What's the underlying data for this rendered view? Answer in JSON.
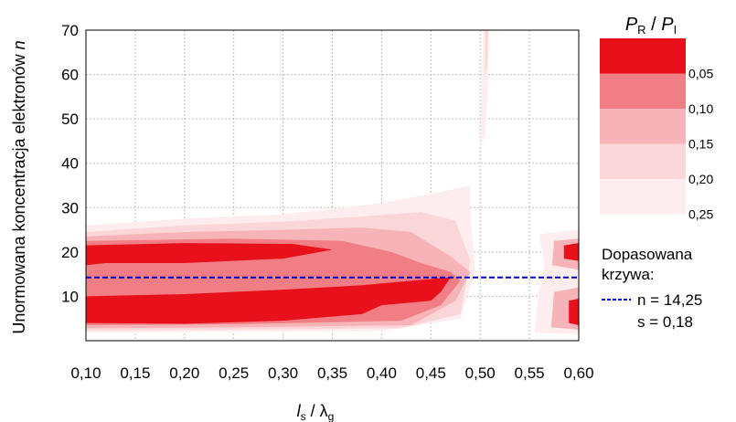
{
  "chart_data": {
    "type": "contour",
    "xlabel": {
      "main": "l",
      "sub1": "s",
      "sep": " / λ",
      "sub2": "g"
    },
    "ylabel": {
      "text": "Unormowana koncentracja elektronów ",
      "var": "n"
    },
    "xlim": [
      0.1,
      0.6
    ],
    "ylim": [
      0,
      70
    ],
    "xticks": [
      "0,10",
      "0,15",
      "0,20",
      "0,25",
      "0,30",
      "0,35",
      "0,40",
      "0,45",
      "0,50",
      "0,55",
      "0,60"
    ],
    "yticks": [
      "10",
      "20",
      "30",
      "40",
      "50",
      "60",
      "70"
    ],
    "grid": true,
    "colorbar": {
      "title_main": "P",
      "title_sub1": "R",
      "title_sep": " / ",
      "title_sub2": "I",
      "levels": [
        "0,05",
        "0,10",
        "0,15",
        "0,20",
        "0,25"
      ],
      "colors": [
        "#e8101a",
        "#f07e84",
        "#f7b4b8",
        "#fbd6d8",
        "#fdedee"
      ]
    },
    "contour_bands": [
      {
        "level": 0.25,
        "color": "#fdedee",
        "points": [
          [
            0.1,
            26
          ],
          [
            0.2,
            27.5
          ],
          [
            0.3,
            28.5
          ],
          [
            0.4,
            31
          ],
          [
            0.46,
            33.5
          ],
          [
            0.49,
            35
          ],
          [
            0.49,
            28
          ],
          [
            0.495,
            16
          ],
          [
            0.48,
            5
          ],
          [
            0.4,
            2.2
          ],
          [
            0.25,
            2
          ],
          [
            0.1,
            1.8
          ]
        ]
      },
      {
        "level": 0.2,
        "color": "#fbd6d8",
        "points": [
          [
            0.1,
            24.5
          ],
          [
            0.2,
            26
          ],
          [
            0.3,
            26.8
          ],
          [
            0.38,
            28
          ],
          [
            0.44,
            29
          ],
          [
            0.475,
            27
          ],
          [
            0.49,
            18
          ],
          [
            0.48,
            6
          ],
          [
            0.42,
            2.8
          ],
          [
            0.25,
            2.5
          ],
          [
            0.1,
            2.3
          ]
        ]
      },
      {
        "level": 0.15,
        "color": "#f7b4b8",
        "points": [
          [
            0.1,
            23.5
          ],
          [
            0.2,
            24.5
          ],
          [
            0.3,
            25
          ],
          [
            0.38,
            25.5
          ],
          [
            0.43,
            24.5
          ],
          [
            0.47,
            19
          ],
          [
            0.49,
            15.5
          ],
          [
            0.475,
            9
          ],
          [
            0.43,
            3.5
          ],
          [
            0.25,
            3
          ],
          [
            0.1,
            2.8
          ]
        ]
      },
      {
        "level": 0.1,
        "color": "#f07e84",
        "points": [
          [
            0.1,
            22.5
          ],
          [
            0.25,
            23
          ],
          [
            0.36,
            22.5
          ],
          [
            0.41,
            20
          ],
          [
            0.44,
            17.5
          ],
          [
            0.47,
            15.5
          ],
          [
            0.48,
            13.5
          ],
          [
            0.46,
            8
          ],
          [
            0.42,
            4.5
          ],
          [
            0.25,
            3.7
          ],
          [
            0.1,
            3.5
          ]
        ]
      },
      {
        "level": 0.05,
        "color": "#e8101a",
        "points": [
          [
            0.1,
            21.5
          ],
          [
            0.2,
            22
          ],
          [
            0.31,
            21.8
          ],
          [
            0.35,
            20.5
          ],
          [
            0.3,
            18.5
          ],
          [
            0.2,
            17.5
          ],
          [
            0.12,
            17.5
          ],
          [
            0.1,
            17
          ]
        ]
      },
      {
        "level": 0.05,
        "color": "#e8101a",
        "points": [
          [
            0.1,
            10
          ],
          [
            0.2,
            10.5
          ],
          [
            0.3,
            11.5
          ],
          [
            0.38,
            12.5
          ],
          [
            0.43,
            13.5
          ],
          [
            0.47,
            14.3
          ],
          [
            0.46,
            11
          ],
          [
            0.45,
            9
          ],
          [
            0.4,
            8
          ],
          [
            0.38,
            6
          ],
          [
            0.3,
            4.5
          ],
          [
            0.2,
            3.8
          ],
          [
            0.1,
            4
          ]
        ]
      },
      {
        "level": 0.25,
        "color": "#fdedee",
        "points": [
          [
            0.503,
            70
          ],
          [
            0.509,
            70
          ],
          [
            0.508,
            58
          ],
          [
            0.505,
            46
          ],
          [
            0.5,
            44
          ],
          [
            0.501,
            55
          ]
        ]
      },
      {
        "level": 0.2,
        "color": "#fbd6d8",
        "points": [
          [
            0.505,
            70
          ],
          [
            0.508,
            70
          ],
          [
            0.507,
            62
          ],
          [
            0.505,
            60
          ]
        ]
      },
      {
        "level": 0.25,
        "color": "#fdedee",
        "points": [
          [
            0.56,
            24
          ],
          [
            0.6,
            25
          ],
          [
            0.6,
            1.5
          ],
          [
            0.555,
            1.8
          ],
          [
            0.56,
            12
          ],
          [
            0.565,
            17
          ]
        ]
      },
      {
        "level": 0.15,
        "color": "#f7b4b8",
        "points": [
          [
            0.575,
            22.5
          ],
          [
            0.6,
            23
          ],
          [
            0.6,
            16
          ],
          [
            0.573,
            17
          ]
        ]
      },
      {
        "level": 0.05,
        "color": "#e8101a",
        "points": [
          [
            0.585,
            21.5
          ],
          [
            0.6,
            22
          ],
          [
            0.6,
            18
          ],
          [
            0.585,
            18.5
          ]
        ]
      },
      {
        "level": 0.15,
        "color": "#f7b4b8",
        "points": [
          [
            0.575,
            11
          ],
          [
            0.6,
            12
          ],
          [
            0.6,
            2.5
          ],
          [
            0.572,
            3
          ]
        ]
      },
      {
        "level": 0.05,
        "color": "#e8101a",
        "points": [
          [
            0.59,
            9
          ],
          [
            0.6,
            9.5
          ],
          [
            0.6,
            3.5
          ],
          [
            0.59,
            4
          ]
        ]
      }
    ],
    "fitted_curve": {
      "y": 14.25,
      "color": "#0000cc"
    },
    "fit_legend": {
      "title_line1": "Dopasowana",
      "title_line2": "krzywa:",
      "n_label": "n = 14,25",
      "s_label": "s = 0,18"
    }
  }
}
